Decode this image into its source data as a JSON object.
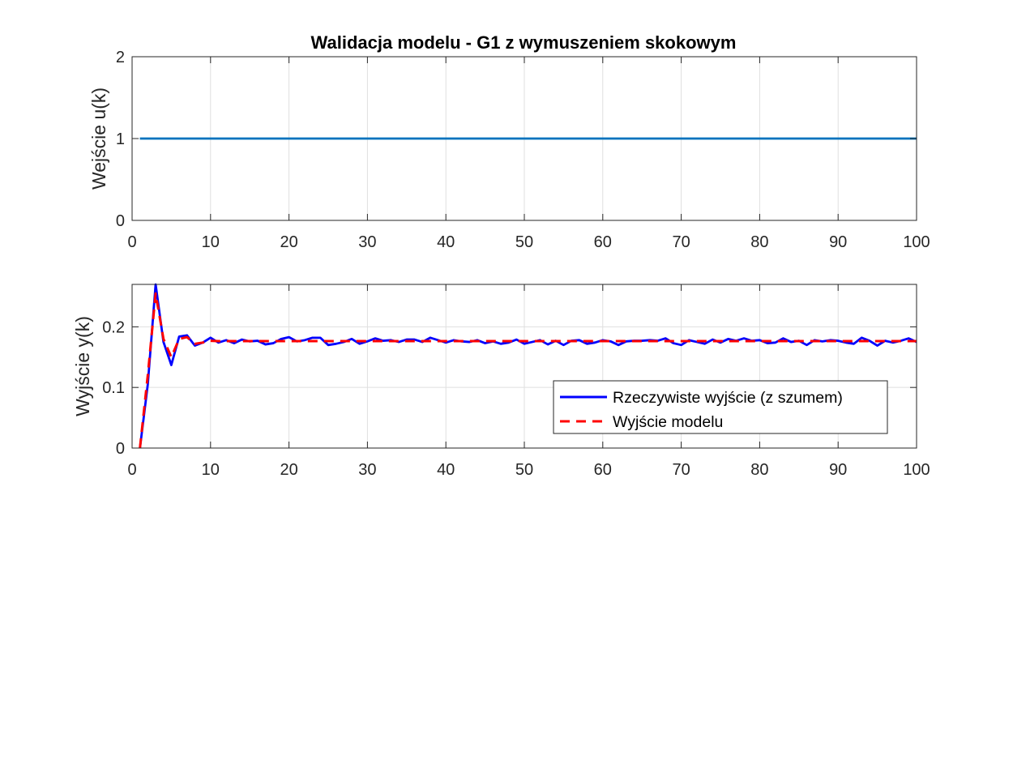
{
  "chart_data": [
    {
      "type": "line",
      "title": "Walidacja modelu - G1 z wymuszeniem skokowym",
      "xlabel": "",
      "ylabel": "Wejście u(k)",
      "xlim": [
        0,
        100
      ],
      "ylim": [
        0,
        2
      ],
      "xticks": [
        "0",
        "10",
        "20",
        "30",
        "40",
        "50",
        "60",
        "70",
        "80",
        "90",
        "100"
      ],
      "yticks": [
        "0",
        "1",
        "2"
      ],
      "grid": true,
      "series": [
        {
          "color": "#0072BD",
          "style": "solid",
          "x": [
            1,
            100
          ],
          "values": [
            1,
            1
          ]
        }
      ]
    },
    {
      "type": "line",
      "title": "",
      "xlabel": "",
      "ylabel": "Wyjście y(k)",
      "xlim": [
        0,
        100
      ],
      "ylim": [
        0,
        0.27
      ],
      "xticks": [
        "0",
        "10",
        "20",
        "30",
        "40",
        "50",
        "60",
        "70",
        "80",
        "90",
        "100"
      ],
      "yticks": [
        "0",
        "0.1",
        "0.2"
      ],
      "grid": true,
      "legend_position": "inside-right",
      "series": [
        {
          "name": "Rzeczywiste wyjście (z szumem)",
          "color": "#0000FF",
          "style": "solid",
          "x_start": 1,
          "values": [
            0,
            0.105,
            0.27,
            0.175,
            0.137,
            0.184,
            0.186,
            0.169,
            0.174,
            0.182,
            0.174,
            0.178,
            0.173,
            0.179,
            0.176,
            0.177,
            0.171,
            0.173,
            0.18,
            0.183,
            0.176,
            0.178,
            0.182,
            0.182,
            0.17,
            0.172,
            0.175,
            0.18,
            0.172,
            0.176,
            0.181,
            0.177,
            0.178,
            0.175,
            0.179,
            0.179,
            0.175,
            0.182,
            0.178,
            0.174,
            0.178,
            0.176,
            0.175,
            0.178,
            0.173,
            0.176,
            0.172,
            0.174,
            0.179,
            0.172,
            0.175,
            0.178,
            0.171,
            0.177,
            0.17,
            0.177,
            0.178,
            0.172,
            0.174,
            0.178,
            0.176,
            0.17,
            0.176,
            0.177,
            0.177,
            0.178,
            0.177,
            0.181,
            0.173,
            0.17,
            0.178,
            0.175,
            0.172,
            0.179,
            0.174,
            0.18,
            0.177,
            0.181,
            0.177,
            0.178,
            0.173,
            0.174,
            0.181,
            0.175,
            0.177,
            0.17,
            0.178,
            0.176,
            0.178,
            0.177,
            0.174,
            0.172,
            0.182,
            0.177,
            0.169,
            0.177,
            0.174,
            0.177,
            0.181,
            0.175
          ]
        },
        {
          "name": "Wyjście modelu",
          "color": "#FF0000",
          "style": "dashed",
          "x_start": 1,
          "values": [
            0,
            0.12,
            0.255,
            0.18,
            0.15,
            0.18,
            0.183,
            0.172,
            0.174,
            0.177,
            0.1765,
            0.1765,
            0.1765,
            0.1765,
            0.1765,
            0.1765,
            0.1765,
            0.1765,
            0.1765,
            0.1765,
            0.1765,
            0.1765,
            0.1765,
            0.1765,
            0.1765,
            0.1765,
            0.1765,
            0.1765,
            0.1765,
            0.1765,
            0.1765,
            0.1765,
            0.1765,
            0.1765,
            0.1765,
            0.1765,
            0.1765,
            0.1765,
            0.1765,
            0.1765,
            0.1765,
            0.1765,
            0.1765,
            0.1765,
            0.1765,
            0.1765,
            0.1765,
            0.1765,
            0.1765,
            0.1765,
            0.1765,
            0.1765,
            0.1765,
            0.1765,
            0.1765,
            0.1765,
            0.1765,
            0.1765,
            0.1765,
            0.1765,
            0.1765,
            0.1765,
            0.1765,
            0.1765,
            0.1765,
            0.1765,
            0.1765,
            0.1765,
            0.1765,
            0.1765,
            0.1765,
            0.1765,
            0.1765,
            0.1765,
            0.1765,
            0.1765,
            0.1765,
            0.1765,
            0.1765,
            0.1765,
            0.1765,
            0.1765,
            0.1765,
            0.1765,
            0.1765,
            0.1765,
            0.1765,
            0.1765,
            0.1765,
            0.1765,
            0.1765,
            0.1765,
            0.1765,
            0.1765,
            0.1765,
            0.1765,
            0.1765,
            0.1765,
            0.1765,
            0.1765
          ]
        }
      ]
    }
  ]
}
